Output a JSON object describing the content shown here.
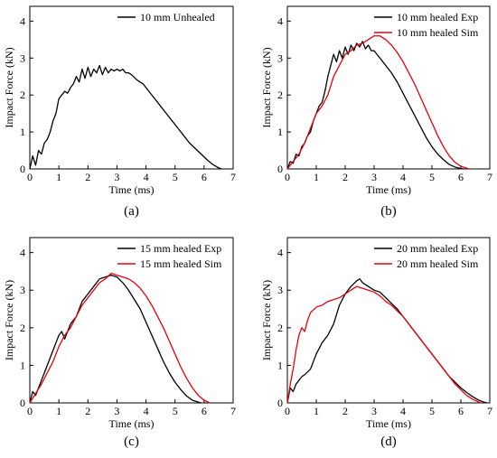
{
  "chart_data": [
    {
      "type": "line",
      "panel_label": "(a)",
      "xlabel": "Time (ms)",
      "ylabel": "Impact Force (kN)",
      "xlim": [
        0,
        7
      ],
      "ylim": [
        0,
        4.4
      ],
      "xticks": [
        0,
        1,
        2,
        3,
        4,
        5,
        6,
        7
      ],
      "yticks": [
        0,
        1,
        2,
        3,
        4
      ],
      "legend_position": "top-right",
      "grid": false,
      "series": [
        {
          "name": "10 mm Unhealed",
          "color": "#000000",
          "x": [
            0,
            0.1,
            0.2,
            0.3,
            0.4,
            0.5,
            0.6,
            0.7,
            0.8,
            0.9,
            1.0,
            1.1,
            1.2,
            1.3,
            1.4,
            1.5,
            1.6,
            1.7,
            1.8,
            1.9,
            2.0,
            2.1,
            2.2,
            2.3,
            2.4,
            2.5,
            2.6,
            2.7,
            2.8,
            2.9,
            3.0,
            3.1,
            3.2,
            3.3,
            3.4,
            3.5,
            3.7,
            3.9,
            4.1,
            4.3,
            4.5,
            4.7,
            4.9,
            5.1,
            5.3,
            5.5,
            5.7,
            5.9,
            6.1,
            6.3,
            6.5,
            6.6
          ],
          "y": [
            0,
            0.35,
            0.1,
            0.5,
            0.4,
            0.7,
            0.8,
            1.0,
            1.3,
            1.5,
            1.9,
            2.0,
            2.1,
            2.05,
            2.2,
            2.3,
            2.5,
            2.35,
            2.7,
            2.45,
            2.75,
            2.5,
            2.7,
            2.6,
            2.8,
            2.55,
            2.75,
            2.6,
            2.7,
            2.65,
            2.7,
            2.65,
            2.7,
            2.6,
            2.6,
            2.55,
            2.4,
            2.3,
            2.1,
            1.9,
            1.7,
            1.5,
            1.3,
            1.1,
            0.9,
            0.7,
            0.55,
            0.4,
            0.25,
            0.12,
            0.03,
            0
          ]
        }
      ]
    },
    {
      "type": "line",
      "panel_label": "(b)",
      "xlabel": "Time (ms)",
      "ylabel": "Impact Force (kN)",
      "xlim": [
        0,
        7
      ],
      "ylim": [
        0,
        4.4
      ],
      "xticks": [
        0,
        1,
        2,
        3,
        4,
        5,
        6,
        7
      ],
      "yticks": [
        0,
        1,
        2,
        3,
        4
      ],
      "legend_position": "top-right",
      "grid": false,
      "series": [
        {
          "name": "10 mm healed Exp",
          "color": "#000000",
          "x": [
            0,
            0.1,
            0.2,
            0.3,
            0.4,
            0.5,
            0.6,
            0.7,
            0.8,
            0.9,
            1.0,
            1.1,
            1.2,
            1.3,
            1.4,
            1.5,
            1.6,
            1.7,
            1.8,
            1.9,
            2.0,
            2.1,
            2.2,
            2.3,
            2.4,
            2.5,
            2.6,
            2.7,
            2.8,
            2.9,
            3.0,
            3.2,
            3.4,
            3.6,
            3.8,
            4.0,
            4.2,
            4.4,
            4.6,
            4.8,
            5.0,
            5.2,
            5.4,
            5.6,
            5.8,
            6.0,
            6.1
          ],
          "y": [
            0,
            0.2,
            0.15,
            0.4,
            0.35,
            0.6,
            0.7,
            0.9,
            1.0,
            1.3,
            1.5,
            1.7,
            1.8,
            2.1,
            2.5,
            2.8,
            3.1,
            2.9,
            3.2,
            3.0,
            3.3,
            3.1,
            3.35,
            3.2,
            3.4,
            3.3,
            3.45,
            3.25,
            3.35,
            3.2,
            3.2,
            3.0,
            2.8,
            2.6,
            2.35,
            2.05,
            1.75,
            1.45,
            1.15,
            0.85,
            0.6,
            0.4,
            0.25,
            0.12,
            0.05,
            0.01,
            0
          ]
        },
        {
          "name": "10 mm healed Sim",
          "color": "#e8000b",
          "x": [
            0,
            0.2,
            0.4,
            0.6,
            0.8,
            1.0,
            1.2,
            1.4,
            1.6,
            1.8,
            2.0,
            2.2,
            2.4,
            2.6,
            2.8,
            3.0,
            3.2,
            3.4,
            3.6,
            3.8,
            4.0,
            4.2,
            4.4,
            4.6,
            4.8,
            5.0,
            5.2,
            5.4,
            5.6,
            5.8,
            6.0,
            6.2,
            6.3
          ],
          "y": [
            0,
            0.2,
            0.4,
            0.7,
            1.1,
            1.5,
            1.7,
            2.0,
            2.5,
            2.8,
            3.1,
            3.2,
            3.35,
            3.4,
            3.5,
            3.6,
            3.6,
            3.5,
            3.35,
            3.15,
            2.9,
            2.6,
            2.3,
            1.95,
            1.6,
            1.25,
            0.9,
            0.6,
            0.35,
            0.18,
            0.07,
            0.02,
            0
          ]
        }
      ]
    },
    {
      "type": "line",
      "panel_label": "(c)",
      "xlabel": "Time (ms)",
      "ylabel": "Impact Force (kN)",
      "xlim": [
        0,
        7
      ],
      "ylim": [
        0,
        4.4
      ],
      "xticks": [
        0,
        1,
        2,
        3,
        4,
        5,
        6,
        7
      ],
      "yticks": [
        0,
        1,
        2,
        3,
        4
      ],
      "legend_position": "top-right",
      "grid": false,
      "series": [
        {
          "name": "15 mm healed Exp",
          "color": "#000000",
          "x": [
            0,
            0.1,
            0.2,
            0.3,
            0.4,
            0.5,
            0.6,
            0.7,
            0.8,
            0.9,
            1.0,
            1.1,
            1.2,
            1.4,
            1.6,
            1.8,
            2.0,
            2.2,
            2.4,
            2.6,
            2.8,
            3.0,
            3.2,
            3.4,
            3.6,
            3.8,
            4.0,
            4.2,
            4.4,
            4.6,
            4.8,
            5.0,
            5.2,
            5.4,
            5.6,
            5.8,
            5.9
          ],
          "y": [
            0,
            0.3,
            0.2,
            0.4,
            0.6,
            0.8,
            1.0,
            1.2,
            1.4,
            1.6,
            1.8,
            1.9,
            1.7,
            2.1,
            2.3,
            2.7,
            2.9,
            3.1,
            3.3,
            3.35,
            3.4,
            3.35,
            3.2,
            3.0,
            2.75,
            2.5,
            2.15,
            1.8,
            1.45,
            1.1,
            0.8,
            0.55,
            0.35,
            0.18,
            0.07,
            0.02,
            0
          ]
        },
        {
          "name": "15 mm healed Sim",
          "color": "#e8000b",
          "x": [
            0,
            0.2,
            0.4,
            0.6,
            0.8,
            1.0,
            1.2,
            1.4,
            1.6,
            1.8,
            2.0,
            2.2,
            2.4,
            2.6,
            2.8,
            3.0,
            3.2,
            3.4,
            3.6,
            3.8,
            4.0,
            4.2,
            4.4,
            4.6,
            4.8,
            5.0,
            5.2,
            5.4,
            5.6,
            5.8,
            6.0,
            6.2
          ],
          "y": [
            0,
            0.25,
            0.5,
            0.8,
            1.1,
            1.5,
            1.8,
            2.0,
            2.3,
            2.6,
            2.8,
            3.0,
            3.2,
            3.3,
            3.45,
            3.4,
            3.35,
            3.3,
            3.2,
            3.05,
            2.85,
            2.6,
            2.3,
            2.0,
            1.65,
            1.3,
            0.95,
            0.65,
            0.4,
            0.2,
            0.07,
            0
          ]
        }
      ]
    },
    {
      "type": "line",
      "panel_label": "(d)",
      "xlabel": "Time (ms)",
      "ylabel": "Impact Force (kN)",
      "xlim": [
        0,
        7
      ],
      "ylim": [
        0,
        4.4
      ],
      "xticks": [
        0,
        1,
        2,
        3,
        4,
        5,
        6,
        7
      ],
      "yticks": [
        0,
        1,
        2,
        3,
        4
      ],
      "legend_position": "top-right",
      "grid": false,
      "series": [
        {
          "name": "20 mm healed Exp",
          "color": "#000000",
          "x": [
            0,
            0.1,
            0.2,
            0.3,
            0.4,
            0.5,
            0.6,
            0.8,
            1.0,
            1.2,
            1.4,
            1.6,
            1.8,
            2.0,
            2.2,
            2.4,
            2.5,
            2.6,
            2.8,
            3.0,
            3.2,
            3.4,
            3.6,
            3.8,
            4.0,
            4.2,
            4.4,
            4.6,
            4.8,
            5.0,
            5.2,
            5.4,
            5.6,
            5.8,
            6.0,
            6.2,
            6.4,
            6.6,
            6.8,
            6.9
          ],
          "y": [
            0,
            0.4,
            0.3,
            0.5,
            0.6,
            0.7,
            0.75,
            0.9,
            1.3,
            1.6,
            1.8,
            2.1,
            2.6,
            2.9,
            3.1,
            3.25,
            3.3,
            3.2,
            3.1,
            3.0,
            2.95,
            2.8,
            2.65,
            2.5,
            2.3,
            2.1,
            1.9,
            1.7,
            1.5,
            1.3,
            1.1,
            0.9,
            0.7,
            0.55,
            0.4,
            0.28,
            0.17,
            0.08,
            0.02,
            0
          ]
        },
        {
          "name": "20 mm healed Sim",
          "color": "#e8000b",
          "x": [
            0,
            0.1,
            0.2,
            0.3,
            0.4,
            0.5,
            0.6,
            0.7,
            0.8,
            1.0,
            1.2,
            1.4,
            1.6,
            1.8,
            2.0,
            2.2,
            2.4,
            2.6,
            2.8,
            3.0,
            3.2,
            3.4,
            3.6,
            3.8,
            4.0,
            4.2,
            4.4,
            4.6,
            4.8,
            5.0,
            5.2,
            5.4,
            5.6,
            5.8,
            6.0,
            6.2,
            6.4,
            6.6,
            6.7
          ],
          "y": [
            0,
            0.5,
            0.9,
            1.4,
            1.8,
            2.0,
            1.9,
            2.2,
            2.4,
            2.55,
            2.6,
            2.7,
            2.75,
            2.8,
            2.9,
            3.0,
            3.1,
            3.05,
            3.0,
            2.95,
            2.85,
            2.7,
            2.6,
            2.45,
            2.3,
            2.1,
            1.9,
            1.7,
            1.5,
            1.3,
            1.1,
            0.9,
            0.7,
            0.5,
            0.35,
            0.2,
            0.1,
            0.03,
            0
          ]
        }
      ]
    }
  ]
}
